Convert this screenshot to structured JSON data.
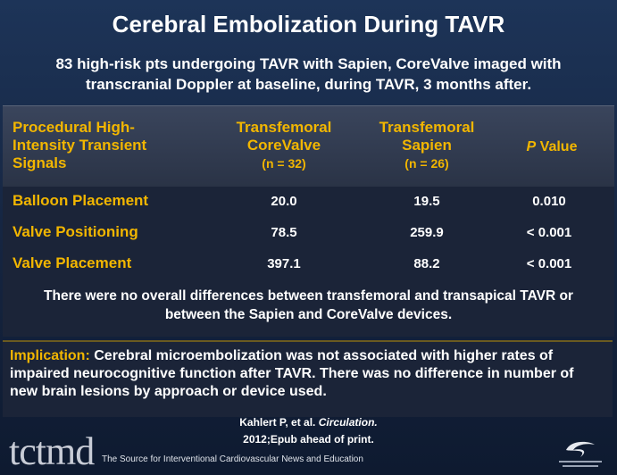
{
  "title": "Cerebral Embolization During TAVR",
  "subtitle": "83 high-risk pts undergoing TAVR with Sapien, CoreValve imaged with transcranial Doppler at baseline, during TAVR, 3 months after.",
  "table": {
    "columns": [
      {
        "title": "Procedural High-Intensity Transient Signals"
      },
      {
        "title": "Transfemoral CoreValve",
        "n": "(n = 32)"
      },
      {
        "title": "Transfemoral Sapien",
        "n": "(n = 26)"
      },
      {
        "italic": "P",
        "title": "Value"
      }
    ],
    "rows": [
      [
        "Balloon Placement",
        "20.0",
        "19.5",
        "0.010"
      ],
      [
        "Valve Positioning",
        "78.5",
        "259.9",
        "< 0.001"
      ],
      [
        "Valve Placement",
        "397.1",
        "88.2",
        "< 0.001"
      ]
    ],
    "note": "There were no overall differences between transfemoral and transapical TAVR or between the Sapien and CoreValve devices."
  },
  "implication": {
    "label": "Implication:",
    "text": "Cerebral microembolization was not associated with higher rates of impaired neurocognitive function after TAVR. There was no difference in number of new brain lesions by approach or device used."
  },
  "citation": {
    "authors": "Kahlert P, et al.",
    "journal": "Circulation.",
    "details": "2012;Epub ahead of print."
  },
  "footer": {
    "logo": "tctmd",
    "tagline": "The Source for Interventional Cardiovascular News and Education"
  }
}
